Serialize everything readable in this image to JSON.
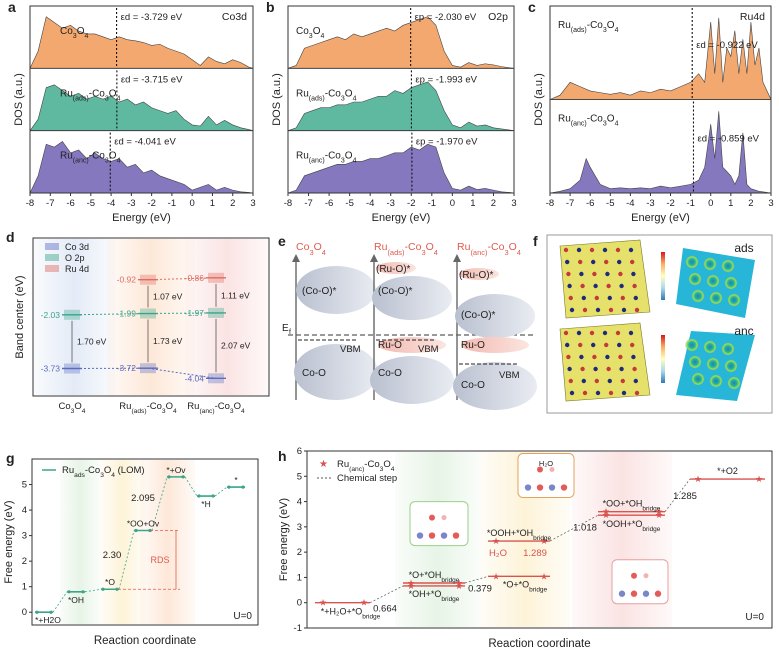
{
  "chart_data": [
    {
      "id": "a",
      "type": "area",
      "panel_label": "a",
      "corner_label": "Co3d",
      "xlabel": "Energy (eV)",
      "ylabel": "DOS (a.u.)",
      "xlim": [
        -8,
        3
      ],
      "xticks": [
        "-8",
        "-7",
        "-6",
        "-5",
        "-4",
        "-3",
        "-2",
        "-1",
        "0",
        "1",
        "2",
        "3"
      ],
      "colors": [
        "#f2a86f",
        "#5fb9a0",
        "#8578bf"
      ],
      "series": [
        {
          "name": "Co3O4",
          "sub": "",
          "tail": "",
          "band_center_text": "εd = -3.729 eV",
          "band_center": -3.729,
          "x": [
            -8,
            -7.6,
            -7.2,
            -6.8,
            -6.4,
            -6,
            -5.6,
            -5.2,
            -4.8,
            -4.4,
            -4,
            -3.6,
            -3.2,
            -2.8,
            -2.4,
            -2,
            -1.6,
            -1.2,
            -0.8,
            -0.4,
            0,
            0.4,
            0.8,
            1.2,
            1.6,
            2,
            2.4,
            2.8,
            3
          ],
          "y": [
            0,
            0.3,
            0.9,
            0.8,
            0.7,
            0.75,
            0.65,
            0.6,
            0.6,
            0.55,
            0.5,
            0.55,
            0.5,
            0.48,
            0.45,
            0.4,
            0.42,
            0.35,
            0.3,
            0.25,
            0.15,
            0.05,
            0.2,
            0.12,
            0.08,
            0.15,
            0.1,
            0.02,
            0
          ]
        },
        {
          "name": "Ru",
          "sub": "(ads)",
          "tail": "-Co3O4",
          "band_center_text": "εd = -3.715 eV",
          "band_center": -3.715,
          "x": [
            -8,
            -7.6,
            -7.2,
            -6.8,
            -6.4,
            -6,
            -5.6,
            -5.2,
            -4.8,
            -4.4,
            -4,
            -3.6,
            -3.2,
            -2.8,
            -2.4,
            -2,
            -1.6,
            -1.2,
            -0.8,
            -0.4,
            0,
            0.4,
            0.8,
            1.2,
            1.6,
            2,
            2.4,
            2.8,
            3
          ],
          "y": [
            0,
            0.2,
            0.75,
            0.8,
            0.7,
            0.6,
            0.65,
            0.55,
            0.6,
            0.55,
            0.6,
            0.5,
            0.55,
            0.45,
            0.5,
            0.4,
            0.35,
            0.3,
            0.35,
            0.2,
            0.1,
            0.08,
            0.25,
            0.1,
            0.18,
            0.1,
            0.05,
            0.02,
            0
          ]
        },
        {
          "name": "Ru",
          "sub": "(anc)",
          "tail": "-Co3O4",
          "band_center_text": "εd = -4.041 eV",
          "band_center": -4.041,
          "x": [
            -8,
            -7.6,
            -7.2,
            -6.8,
            -6.4,
            -6,
            -5.6,
            -5.2,
            -4.8,
            -4.4,
            -4,
            -3.6,
            -3.2,
            -2.8,
            -2.4,
            -2,
            -1.6,
            -1.2,
            -0.8,
            -0.4,
            0,
            0.4,
            0.8,
            1.2,
            1.6,
            2,
            2.4,
            2.8,
            3
          ],
          "y": [
            0,
            0.3,
            0.85,
            0.8,
            0.9,
            0.7,
            0.75,
            0.6,
            0.7,
            0.6,
            0.55,
            0.6,
            0.45,
            0.5,
            0.35,
            0.4,
            0.3,
            0.25,
            0.2,
            0.15,
            0.05,
            0.1,
            0.15,
            0.05,
            0.1,
            0.05,
            0.02,
            0.01,
            0
          ]
        }
      ]
    },
    {
      "id": "b",
      "type": "area",
      "panel_label": "b",
      "corner_label": "O2p",
      "xlabel": "Energy (eV)",
      "ylabel": "DOS (a.u.)",
      "xlim": [
        -8,
        3
      ],
      "xticks": [
        "-8",
        "-7",
        "-6",
        "-5",
        "-4",
        "-3",
        "-2",
        "-1",
        "0",
        "1",
        "2",
        "3"
      ],
      "colors": [
        "#f2a86f",
        "#5fb9a0",
        "#8578bf"
      ],
      "series": [
        {
          "name": "Co3O4",
          "sub": "",
          "tail": "",
          "band_center_text": "εp = -2.030 eV",
          "band_center": -2.03,
          "x": [
            -8,
            -7.6,
            -7.2,
            -6.8,
            -6.4,
            -6,
            -5.6,
            -5.2,
            -4.8,
            -4.4,
            -4,
            -3.6,
            -3.2,
            -2.8,
            -2.4,
            -2,
            -1.6,
            -1.2,
            -0.8,
            -0.4,
            0,
            0.4,
            0.8,
            1.2,
            1.6,
            2,
            2.4,
            2.8,
            3
          ],
          "y": [
            0,
            0.05,
            0.35,
            0.4,
            0.45,
            0.5,
            0.55,
            0.5,
            0.6,
            0.55,
            0.6,
            0.65,
            0.7,
            0.65,
            0.75,
            0.8,
            0.85,
            0.9,
            0.75,
            0.3,
            0.05,
            0.02,
            0.1,
            0.05,
            0.08,
            0.06,
            0.03,
            0.01,
            0
          ]
        },
        {
          "name": "Ru",
          "sub": "(ads)",
          "tail": "-Co3O4",
          "band_center_text": "εp = -1.993 eV",
          "band_center": -1.993,
          "x": [
            -8,
            -7.6,
            -7.2,
            -6.8,
            -6.4,
            -6,
            -5.6,
            -5.2,
            -4.8,
            -4.4,
            -4,
            -3.6,
            -3.2,
            -2.8,
            -2.4,
            -2,
            -1.6,
            -1.2,
            -0.8,
            -0.4,
            0,
            0.4,
            0.8,
            1.2,
            1.6,
            2,
            2.4,
            2.8,
            3
          ],
          "y": [
            0,
            0.05,
            0.3,
            0.35,
            0.4,
            0.4,
            0.45,
            0.45,
            0.5,
            0.5,
            0.55,
            0.6,
            0.6,
            0.7,
            0.65,
            0.75,
            0.8,
            0.85,
            0.7,
            0.35,
            0.1,
            0.05,
            0.15,
            0.08,
            0.1,
            0.05,
            0.03,
            0.01,
            0
          ]
        },
        {
          "name": "Ru",
          "sub": "(anc)",
          "tail": "-Co3O4",
          "band_center_text": "εp = -1.970 eV",
          "band_center": -1.97,
          "x": [
            -8,
            -7.6,
            -7.2,
            -6.8,
            -6.4,
            -6,
            -5.6,
            -5.2,
            -4.8,
            -4.4,
            -4,
            -3.6,
            -3.2,
            -2.8,
            -2.4,
            -2,
            -1.6,
            -1.2,
            -0.8,
            -0.4,
            0,
            0.4,
            0.8,
            1.2,
            1.6,
            2,
            2.4,
            2.8,
            3
          ],
          "y": [
            0,
            0.05,
            0.3,
            0.35,
            0.4,
            0.45,
            0.5,
            0.5,
            0.55,
            0.55,
            0.6,
            0.6,
            0.65,
            0.7,
            0.7,
            0.8,
            0.75,
            0.85,
            0.8,
            0.35,
            0.08,
            0.05,
            0.12,
            0.06,
            0.08,
            0.05,
            0.02,
            0.01,
            0
          ]
        }
      ]
    },
    {
      "id": "c",
      "type": "area",
      "panel_label": "c",
      "corner_label": "Ru4d",
      "xlabel": "Energy (eV)",
      "ylabel": "DOS (a.u.)",
      "xlim": [
        -8,
        3
      ],
      "xticks": [
        "-8",
        "-7",
        "-6",
        "-5",
        "-4",
        "-3",
        "-2",
        "-1",
        "0",
        "1",
        "2",
        "3"
      ],
      "colors": [
        "#f2a86f",
        "#8578bf"
      ],
      "series": [
        {
          "name": "Ru",
          "sub": "(ads)",
          "tail": "-Co3O4",
          "band_center_text": "εd = -0.922 eV",
          "band_center": -0.922,
          "x": [
            -8,
            -7.5,
            -7,
            -6.5,
            -6,
            -5.5,
            -5,
            -4.5,
            -4,
            -3.5,
            -3,
            -2.5,
            -2,
            -1.5,
            -1,
            -0.6,
            -0.3,
            0,
            0.2,
            0.4,
            0.6,
            0.8,
            1,
            1.2,
            1.4,
            1.6,
            1.8,
            2,
            2.2,
            2.4,
            2.6,
            3
          ],
          "y": [
            0,
            0.05,
            0.2,
            0.15,
            0.1,
            0.08,
            0.06,
            0.08,
            0.05,
            0.1,
            0.08,
            0.12,
            0.1,
            0.15,
            0.2,
            0.3,
            0.2,
            0.9,
            0.3,
            0.95,
            0.2,
            0.6,
            0.5,
            0.8,
            0.3,
            0.7,
            0.3,
            0.9,
            0.4,
            0.6,
            0.2,
            0
          ]
        },
        {
          "name": "Ru",
          "sub": "(anc)",
          "tail": "-Co3O4",
          "band_center_text": "εd = -0.859 eV",
          "band_center": -0.859,
          "x": [
            -8,
            -7.5,
            -7,
            -6.5,
            -6.2,
            -6,
            -5.5,
            -5,
            -4.5,
            -4,
            -3.5,
            -3,
            -2.5,
            -2,
            -1.5,
            -1,
            -0.6,
            -0.3,
            0,
            0.2,
            0.4,
            0.6,
            0.8,
            1,
            1.2,
            1.4,
            1.6,
            1.8,
            2,
            2.4,
            3
          ],
          "y": [
            0,
            0.02,
            0.05,
            0.15,
            0.4,
            0.3,
            0.1,
            0.05,
            0.06,
            0.05,
            0.06,
            0.05,
            0.08,
            0.06,
            0.08,
            0.1,
            0.15,
            0.3,
            0.8,
            0.4,
            0.95,
            0.3,
            0.25,
            0.2,
            0.1,
            0.2,
            0.7,
            0.1,
            0.05,
            0.02,
            0
          ]
        }
      ]
    },
    {
      "id": "d",
      "type": "scatter",
      "panel_label": "d",
      "ylabel": "Band center (eV)",
      "ylim": [
        -4.6,
        0.4
      ],
      "categories": [
        {
          "name": "Co3O4",
          "sub": "",
          "tail": ""
        },
        {
          "name": "Ru",
          "sub": "(ads)",
          "tail": "-Co3O4"
        },
        {
          "name": "Ru",
          "sub": "(anc)",
          "tail": "-Co3O4"
        }
      ],
      "legend": [
        "Co 3d",
        "O 2p",
        "Ru 4d"
      ],
      "series": [
        {
          "name": "Co 3d",
          "color": "#5a6cc0",
          "values": [
            -3.73,
            -3.72,
            -4.04
          ],
          "labels": [
            "-3.73",
            "-3.72",
            "-4.04"
          ]
        },
        {
          "name": "O 2p",
          "color": "#3aa58a",
          "values": [
            -2.03,
            -1.99,
            -1.97
          ],
          "labels": [
            "-2.03",
            "-1.99",
            "-1.97"
          ]
        },
        {
          "name": "Ru 4d",
          "color": "#e06b5f",
          "values": [
            null,
            -0.92,
            -0.86
          ],
          "labels": [
            "",
            "-0.92",
            "-0.86"
          ]
        }
      ],
      "gaps": [
        {
          "category": 0,
          "from": -3.73,
          "to": -2.03,
          "label": "1.70 eV"
        },
        {
          "category": 1,
          "from": -3.72,
          "to": -1.99,
          "label": "1.73 eV"
        },
        {
          "category": 1,
          "from": -1.99,
          "to": -0.92,
          "label": "1.07 eV"
        },
        {
          "category": 2,
          "from": -4.04,
          "to": -1.97,
          "label": "2.07 eV"
        },
        {
          "category": 2,
          "from": -1.97,
          "to": -0.86,
          "label": "1.11 eV"
        }
      ]
    },
    {
      "id": "g",
      "type": "line",
      "panel_label": "g",
      "xlabel": "Reaction coordinate",
      "ylabel": "Free energy (eV)",
      "ylim": [
        -0.5,
        6
      ],
      "yticks": [
        "0",
        "1",
        "2",
        "3",
        "4",
        "5"
      ],
      "legend": {
        "name": "Ru",
        "sub": "ads",
        "tail": "-Co3O4 (LOM)"
      },
      "condition": "U=0",
      "rds_label": "RDS",
      "levels": [
        {
          "value": 0,
          "label": "*+H2O"
        },
        {
          "value": 0.8,
          "label": "*OH"
        },
        {
          "value": 0.9,
          "label": "*O"
        },
        {
          "value": 3.2,
          "label": "*OO+Ov"
        },
        {
          "value": 5.3,
          "label": "*+Ov"
        },
        {
          "value": 4.55,
          "label": "*H"
        },
        {
          "value": 4.9,
          "label": "*"
        }
      ],
      "annotations": [
        "2.30",
        "2.095"
      ]
    },
    {
      "id": "h",
      "type": "line",
      "panel_label": "h",
      "xlabel": "Reaction coordinate",
      "ylabel": "Free energy (eV)",
      "ylim": [
        -1,
        6
      ],
      "yticks": [
        "-1",
        "0",
        "1",
        "2",
        "3",
        "4",
        "5",
        "6"
      ],
      "legend": [
        {
          "name": "Ru",
          "sub": "(anc)",
          "tail": "-Co3O4"
        },
        {
          "name": "Chemical step",
          "sub": "",
          "tail": ""
        }
      ],
      "condition": "U=0",
      "levels": [
        {
          "value": 0,
          "label": "*+H2O+*Obridge"
        },
        {
          "value": 0.664,
          "label": "*OH+*Obridge"
        },
        {
          "value": 0.78,
          "label": "*O+*OHbridge"
        },
        {
          "value": 1.043,
          "label": "*O+*Obridge"
        },
        {
          "value": 2.44,
          "label": "*OOH+*OHbridge"
        },
        {
          "value": 3.46,
          "label": "*OOH+*Obridge"
        },
        {
          "value": 3.6,
          "label": "*OO+*OHbridge"
        },
        {
          "value": 4.89,
          "label": "*+O2"
        }
      ],
      "step_labels": [
        "0.664",
        "0.379",
        "1.289",
        "1.018",
        "1.285"
      ],
      "h2o_label": "H2O"
    }
  ],
  "schematic": {
    "panel_label": "e",
    "fermi_label": "Ef",
    "columns": [
      {
        "title": "Co3O4",
        "states": [
          "(Co-O)*",
          "Co-O"
        ],
        "vbm": "VBM"
      },
      {
        "title": "Ru(ads)-Co3O4",
        "states": [
          "(Ru-O)*",
          "(Co-O)*",
          "Ru-O",
          "Co-O"
        ],
        "vbm": "VBM"
      },
      {
        "title": "Ru(anc)-Co3O4",
        "states": [
          "(Ru-O)*",
          "(Co-O)*",
          "Ru-O",
          "Co-O"
        ],
        "vbm": "VBM"
      }
    ]
  },
  "structures": {
    "panel_label": "f",
    "labels": [
      "ads",
      "anc"
    ]
  },
  "insets": {
    "h2o_label": "H2O"
  }
}
